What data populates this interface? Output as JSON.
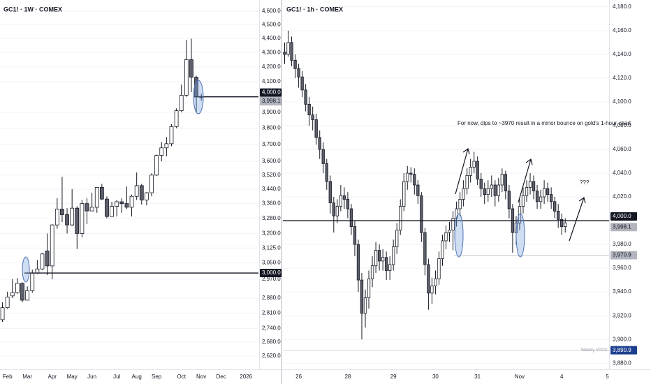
{
  "chart_data": [
    {
      "type": "candlestick",
      "title": "GC1! · 1W · COMEX",
      "log_scale": true,
      "grid": true,
      "up_color": "#ffffff",
      "down_color": "#5d606b",
      "wick_color": "#131722",
      "categories": [
        null,
        "Feb",
        null,
        null,
        null,
        "Mar",
        null,
        null,
        null,
        null,
        "Apr",
        null,
        null,
        null,
        "May",
        null,
        null,
        null,
        "Jun",
        null,
        null,
        null,
        null,
        "Jul",
        null,
        null,
        null,
        "Aug",
        null,
        null,
        null,
        "Sep",
        null,
        null,
        null,
        null,
        "Oct",
        null,
        null,
        null,
        "Nov",
        null,
        null,
        null,
        "Dec",
        null,
        null,
        null,
        null,
        "2026",
        null,
        null
      ],
      "open": [
        2780,
        2835,
        2890,
        2905,
        2950,
        2870,
        2915,
        3000,
        3020,
        3110,
        3035,
        3245,
        3330,
        3300,
        3245,
        3335,
        3200,
        3360,
        3320,
        3340,
        3450,
        3385,
        3290,
        3345,
        3370,
        3360,
        3340,
        3400,
        3460,
        3380,
        3420,
        3520,
        3635,
        3680,
        3705,
        3810,
        3910,
        4010,
        4250,
        4130,
        4000,
        null,
        null,
        null,
        null,
        null,
        null,
        null,
        null,
        null,
        null,
        null
      ],
      "high": [
        2860,
        2910,
        2970,
        2975,
        2955,
        2935,
        3017,
        3065,
        3100,
        3200,
        3250,
        3390,
        3510,
        3335,
        3440,
        3345,
        3380,
        3390,
        3420,
        3450,
        3470,
        3400,
        3370,
        3380,
        3390,
        3455,
        3410,
        3535,
        3470,
        3425,
        3530,
        3640,
        3715,
        3745,
        3825,
        3925,
        4080,
        4390,
        4398,
        4140,
        4020,
        null,
        null,
        null,
        null,
        null,
        null,
        null,
        null,
        null,
        null,
        null
      ],
      "low": [
        2770,
        2830,
        2880,
        2900,
        2860,
        2870,
        2905,
        2995,
        3015,
        2990,
        2970,
        3225,
        3260,
        3200,
        3240,
        3120,
        3180,
        3250,
        3320,
        3310,
        3380,
        3280,
        3290,
        3290,
        3310,
        3330,
        3290,
        3380,
        3355,
        3350,
        3400,
        3515,
        3600,
        3630,
        3690,
        3800,
        3900,
        4000,
        4030,
        3900,
        3975,
        null,
        null,
        null,
        null,
        null,
        null,
        null,
        null,
        null,
        null,
        null
      ],
      "close": [
        2835,
        2885,
        2905,
        2950,
        2870,
        2915,
        3000,
        3020,
        3095,
        3035,
        3245,
        3330,
        3300,
        3245,
        3335,
        3200,
        3360,
        3320,
        3340,
        3450,
        3385,
        3290,
        3345,
        3370,
        3360,
        3340,
        3400,
        3460,
        3380,
        3420,
        3520,
        3635,
        3680,
        3705,
        3810,
        3910,
        4010,
        4250,
        4130,
        4000,
        3998.1,
        null,
        null,
        null,
        null,
        null,
        null,
        null,
        null,
        null,
        null,
        null
      ],
      "ylim": [
        2590,
        4658
      ],
      "yticks": [
        {
          "value": 4600,
          "label": "4,600.0"
        },
        {
          "value": 4500,
          "label": "4,500.0"
        },
        {
          "value": 4400,
          "label": "4,400.0"
        },
        {
          "value": 4300,
          "label": "4,300.0"
        },
        {
          "value": 4200,
          "label": "4,200.0"
        },
        {
          "value": 4100,
          "label": "4,100.0"
        },
        {
          "value": 3900,
          "label": "3,900.0"
        },
        {
          "value": 3800,
          "label": "3,800.0"
        },
        {
          "value": 3700,
          "label": "3,700.0"
        },
        {
          "value": 3600,
          "label": "3,600.0"
        },
        {
          "value": 3520,
          "label": "3,520.0"
        },
        {
          "value": 3440,
          "label": "3,440.0"
        },
        {
          "value": 3360,
          "label": "3,360.0"
        },
        {
          "value": 3280,
          "label": "3,280.0"
        },
        {
          "value": 3200,
          "label": "3,200.0"
        },
        {
          "value": 3125,
          "label": "3,125.0"
        },
        {
          "value": 3050,
          "label": "3,050.0"
        },
        {
          "value": 2970,
          "label": "2,970.0"
        },
        {
          "value": 2880,
          "label": "2,880.0"
        },
        {
          "value": 2810,
          "label": "2,810.0"
        },
        {
          "value": 2740,
          "label": "2,740.0"
        },
        {
          "value": 2680,
          "label": "2,680.0"
        },
        {
          "value": 2620,
          "label": "2,620.0"
        }
      ],
      "levels": [
        {
          "value": 3000,
          "label": "3,000.0"
        },
        {
          "value": 4000,
          "label": "4,000.0"
        }
      ],
      "last_price": {
        "value": 3998.1,
        "label": "3,998.1"
      }
    },
    {
      "type": "candlestick",
      "title": "GC1! · 1h · COMEX",
      "log_scale": false,
      "grid": true,
      "up_color": "#ffffff",
      "down_color": "#5d606b",
      "wick_color": "#131722",
      "categories": [
        null,
        null,
        null,
        null,
        "26",
        null,
        null,
        null,
        null,
        null,
        null,
        null,
        null,
        null,
        null,
        null,
        null,
        null,
        "28",
        null,
        null,
        null,
        null,
        null,
        null,
        null,
        null,
        null,
        null,
        null,
        null,
        "29",
        null,
        null,
        null,
        null,
        null,
        null,
        null,
        null,
        null,
        null,
        null,
        "30",
        null,
        null,
        null,
        null,
        null,
        null,
        null,
        null,
        null,
        null,
        null,
        "31",
        null,
        null,
        null,
        null,
        null,
        null,
        null,
        null,
        null,
        null,
        null,
        "Nov",
        null,
        null,
        null,
        null,
        null,
        null,
        null,
        null,
        null,
        null,
        null,
        "4",
        null,
        null,
        null,
        null,
        null,
        null,
        null,
        null,
        null,
        null,
        null,
        null,
        "5"
      ],
      "open": [
        4142,
        4140,
        4150,
        4135,
        4128,
        4121,
        4110,
        4098,
        4089,
        4085,
        4070,
        4060,
        4048,
        4033,
        4015,
        4004,
        4012,
        4021,
        4018,
        4010,
        3995,
        3980,
        3950,
        3922,
        3935,
        3951,
        3962,
        3975,
        3966,
        3969,
        3958,
        3963,
        3978,
        3992,
        4012,
        4033,
        4040,
        4039,
        4030,
        4021,
        3990,
        3963,
        3939,
        3945,
        3951,
        3968,
        3983,
        3990,
        3992,
        4002,
        4010,
        4018,
        4027,
        4038,
        4045,
        4050,
        4035,
        4027,
        4022,
        4027,
        4030,
        4021,
        4030,
        4039,
        4025,
        4010,
        3990,
        3998,
        4012,
        4021,
        4028,
        4033,
        4025,
        4016,
        4020,
        4027,
        4022,
        4016,
        4008,
        4001,
        3995,
        null,
        null,
        null,
        null,
        null,
        null,
        null,
        null,
        null,
        null,
        null,
        null
      ],
      "high": [
        4150,
        4160,
        4155,
        4140,
        4132,
        4126,
        4115,
        4104,
        4096,
        4090,
        4076,
        4066,
        4052,
        4038,
        4020,
        4018,
        4030,
        4028,
        4024,
        4014,
        4000,
        3984,
        3956,
        3942,
        3958,
        3970,
        3982,
        3980,
        3976,
        3974,
        3970,
        3984,
        3998,
        4018,
        4040,
        4046,
        4045,
        4044,
        4034,
        4024,
        3994,
        3968,
        3952,
        3958,
        3974,
        3988,
        3996,
        3999,
        4008,
        4016,
        4024,
        4034,
        4044,
        4052,
        4058,
        4054,
        4040,
        4032,
        4034,
        4038,
        4034,
        4036,
        4044,
        4042,
        4030,
        4014,
        4004,
        4018,
        4028,
        4034,
        4040,
        4038,
        4030,
        4026,
        4034,
        4032,
        4028,
        4020,
        4014,
        4006,
        4002,
        null,
        null,
        null,
        null,
        null,
        null,
        null,
        null,
        null,
        null,
        null,
        null
      ],
      "low": [
        4132,
        4138,
        4130,
        4120,
        4112,
        4104,
        4092,
        4080,
        4076,
        4064,
        4052,
        4040,
        4026,
        4006,
        3990,
        3998,
        4008,
        4010,
        4002,
        3988,
        3970,
        3940,
        3900,
        3910,
        3926,
        3944,
        3956,
        3958,
        3958,
        3950,
        3950,
        3958,
        3972,
        3988,
        4008,
        4026,
        4032,
        4022,
        4014,
        3982,
        3954,
        3925,
        3930,
        3938,
        3946,
        3962,
        3976,
        3982,
        3975,
        3995,
        4004,
        4012,
        4022,
        4032,
        4040,
        4030,
        4020,
        4014,
        4016,
        4020,
        4012,
        4016,
        4024,
        4018,
        4002,
        3973,
        3980,
        3992,
        4006,
        4016,
        4022,
        4018,
        4010,
        4010,
        4014,
        4016,
        4010,
        4002,
        3994,
        3988,
        3990,
        null,
        null,
        null,
        null,
        null,
        null,
        null,
        null,
        null,
        null,
        null,
        null
      ],
      "close": [
        4140,
        4150,
        4135,
        4128,
        4121,
        4110,
        4098,
        4089,
        4085,
        4070,
        4060,
        4048,
        4033,
        4015,
        4004,
        4012,
        4021,
        4018,
        4010,
        3995,
        3980,
        3950,
        3922,
        3935,
        3951,
        3962,
        3975,
        3966,
        3969,
        3958,
        3963,
        3978,
        3992,
        4012,
        4033,
        4040,
        4039,
        4030,
        4021,
        3990,
        3963,
        3939,
        3945,
        3951,
        3968,
        3983,
        3990,
        3992,
        4002,
        4010,
        4018,
        4027,
        4038,
        4045,
        4050,
        4035,
        4027,
        4022,
        4027,
        4030,
        4021,
        4030,
        4039,
        4025,
        4010,
        3990,
        3998,
        4012,
        4021,
        4028,
        4033,
        4025,
        4016,
        4020,
        4027,
        4022,
        4016,
        4008,
        4001,
        3995,
        3998.1,
        null,
        null,
        null,
        null,
        null,
        null,
        null,
        null,
        null,
        null,
        null,
        null
      ],
      "ylim": [
        3876,
        4184
      ],
      "yticks": [
        {
          "value": 4180,
          "label": "4,180.0"
        },
        {
          "value": 4160,
          "label": "4,160.0"
        },
        {
          "value": 4140,
          "label": "4,140.0"
        },
        {
          "value": 4120,
          "label": "4,120.0"
        },
        {
          "value": 4100,
          "label": "4,100.0"
        },
        {
          "value": 4080,
          "label": "4,080.0"
        },
        {
          "value": 4060,
          "label": "4,060.0"
        },
        {
          "value": 4040,
          "label": "4,040.0"
        },
        {
          "value": 4020,
          "label": "4,020.0"
        },
        {
          "value": 3980,
          "label": "3,980.0"
        },
        {
          "value": 3960,
          "label": "3,960.0"
        },
        {
          "value": 3940,
          "label": "3,940.0"
        },
        {
          "value": 3920,
          "label": "3,920.0"
        },
        {
          "value": 3900,
          "label": "3,900.0"
        },
        {
          "value": 3880,
          "label": "3,880.0"
        }
      ],
      "levels": [
        {
          "value": 4000,
          "label": "4,000.0"
        }
      ],
      "last_price": {
        "value": 3998.1,
        "label": "3,998.1"
      },
      "marker": {
        "value": 3970.9,
        "label": "3,970.9"
      },
      "vpoc": {
        "name": "Weekly VPOC",
        "value": 3890.9,
        "label": "3,890.9",
        "color": "#1e3f8f"
      },
      "annotation": "For now, dips to ~3970 result in a minor bounce on gold's 1-hour chart",
      "note": "???"
    }
  ]
}
